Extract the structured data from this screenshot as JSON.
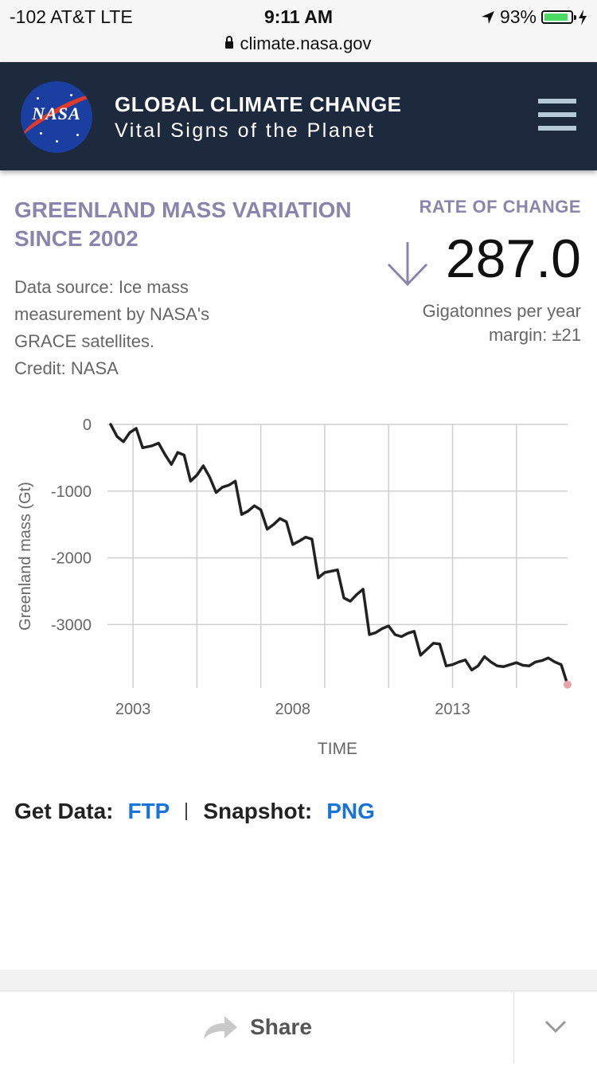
{
  "status_bar": {
    "carrier": "-102 AT&T   LTE",
    "time": "9:11 AM",
    "battery": "93%",
    "battery_level": 0.93,
    "url": "climate.nasa.gov"
  },
  "header": {
    "logo_text": "NASA",
    "title": "GLOBAL CLIMATE CHANGE",
    "subtitle": "Vital Signs of the Planet"
  },
  "chart_info": {
    "title": "GREENLAND MASS VARIATION SINCE 2002",
    "source": "Data source: Ice mass measurement by NASA's GRACE satellites.",
    "credit": "Credit: NASA"
  },
  "rate": {
    "label": "RATE OF CHANGE",
    "direction": "down",
    "value": "287.0",
    "unit": "Gigatonnes per year",
    "margin": "margin: ±21"
  },
  "chart_data": {
    "type": "line",
    "xlabel": "TIME",
    "ylabel": "Greenland mass (Gt)",
    "xticks": [
      "2003",
      "2008",
      "2013"
    ],
    "yticks": [
      "0",
      "-1000",
      "-2000",
      "-3000"
    ],
    "xlim": [
      2002.2,
      2016.6
    ],
    "ylim": [
      -3950,
      0
    ],
    "grid": true,
    "line_color": "#222222",
    "endpoint_color": "#e8a5a5",
    "x": [
      2002.3,
      2002.5,
      2002.7,
      2002.9,
      2003.1,
      2003.3,
      2003.5,
      2003.6,
      2003.8,
      2004.0,
      2004.2,
      2004.4,
      2004.6,
      2004.8,
      2005.0,
      2005.2,
      2005.4,
      2005.6,
      2005.8,
      2006.0,
      2006.2,
      2006.4,
      2006.6,
      2006.8,
      2007.0,
      2007.2,
      2007.4,
      2007.6,
      2007.8,
      2008.0,
      2008.2,
      2008.4,
      2008.6,
      2008.8,
      2009.0,
      2009.2,
      2009.4,
      2009.6,
      2009.8,
      2010.0,
      2010.2,
      2010.4,
      2010.6,
      2010.8,
      2011.0,
      2011.2,
      2011.4,
      2011.6,
      2011.8,
      2012.0,
      2012.2,
      2012.4,
      2012.6,
      2012.8,
      2013.0,
      2013.2,
      2013.4,
      2013.6,
      2013.8,
      2014.0,
      2014.2,
      2014.4,
      2014.6,
      2014.8,
      2015.0,
      2015.2,
      2015.4,
      2015.6,
      2015.8,
      2016.0,
      2016.2,
      2016.4,
      2016.6
    ],
    "y": [
      0,
      -180,
      -260,
      -120,
      -60,
      -350,
      -330,
      -320,
      -280,
      -450,
      -600,
      -420,
      -460,
      -850,
      -760,
      -620,
      -790,
      -1020,
      -940,
      -910,
      -850,
      -1350,
      -1300,
      -1220,
      -1280,
      -1570,
      -1500,
      -1410,
      -1460,
      -1800,
      -1750,
      -1690,
      -1720,
      -2300,
      -2220,
      -2200,
      -2180,
      -2600,
      -2650,
      -2550,
      -2470,
      -3150,
      -3120,
      -3060,
      -3020,
      -3150,
      -3180,
      -3130,
      -3100,
      -3460,
      -3370,
      -3280,
      -3290,
      -3620,
      -3600,
      -3560,
      -3530,
      -3680,
      -3620,
      -3480,
      -3560,
      -3620,
      -3630,
      -3600,
      -3570,
      -3610,
      -3620,
      -3560,
      -3540,
      -3500,
      -3560,
      -3600,
      -3900
    ]
  },
  "get_data": {
    "label": "Get Data:",
    "ftp": "FTP",
    "snapshot_label": "Snapshot:",
    "png": "PNG"
  },
  "bottom_bar": {
    "share": "Share"
  }
}
